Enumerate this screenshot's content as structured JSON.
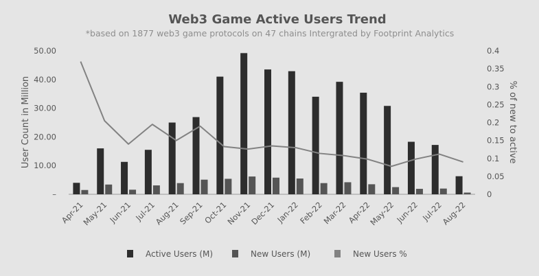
{
  "chart_data": {
    "type": "bar",
    "title": "Web3 Game Active Users Trend",
    "subtitle": "*based on 1877 web3 game protocols on 47 chains Intergrated by Footprint Analytics",
    "categories": [
      "Apr-21",
      "May-21",
      "Jun-21",
      "Jul-21",
      "Aug-21",
      "Sep-21",
      "Oct-21",
      "Nov-21",
      "Dec-21",
      "Jan-22",
      "Feb-22",
      "Mar-22",
      "Apr-22",
      "May-22",
      "Jun-22",
      "Jul-22",
      "Aug-22"
    ],
    "series": [
      {
        "name": "Active Users (M)",
        "type": "bar",
        "axis": "left",
        "color": "#2d2d2d",
        "values": [
          4.0,
          16.0,
          11.3,
          15.5,
          25.0,
          26.9,
          41.0,
          49.2,
          43.5,
          42.9,
          34.0,
          39.2,
          35.4,
          30.8,
          18.3,
          17.2,
          6.3
        ]
      },
      {
        "name": "New Users (M)",
        "type": "bar",
        "axis": "left",
        "color": "#555555",
        "values": [
          1.5,
          3.4,
          1.6,
          3.1,
          3.9,
          5.1,
          5.4,
          6.2,
          5.8,
          5.5,
          3.9,
          4.2,
          3.5,
          2.5,
          1.9,
          2.0,
          0.6
        ]
      },
      {
        "name": "New Users %",
        "type": "line",
        "axis": "right",
        "color": "#828282",
        "values": [
          0.37,
          0.205,
          0.14,
          0.195,
          0.15,
          0.19,
          0.133,
          0.126,
          0.135,
          0.13,
          0.114,
          0.108,
          0.098,
          0.078,
          0.098,
          0.112,
          0.09
        ]
      }
    ],
    "ylabel": "User Count in Million",
    "y2label": "% of new to active",
    "ylim": [
      0,
      50
    ],
    "y2lim": [
      0,
      0.4
    ],
    "yticks": [
      "–",
      "10.00",
      "20.00",
      "30.00",
      "40.00",
      "50.00"
    ],
    "y2ticks": [
      "0",
      "0.05",
      "0.1",
      "0.15",
      "0.2",
      "0.25",
      "0.3",
      "0.35",
      "0.4"
    ],
    "grid": false,
    "legend_position": "bottom"
  }
}
